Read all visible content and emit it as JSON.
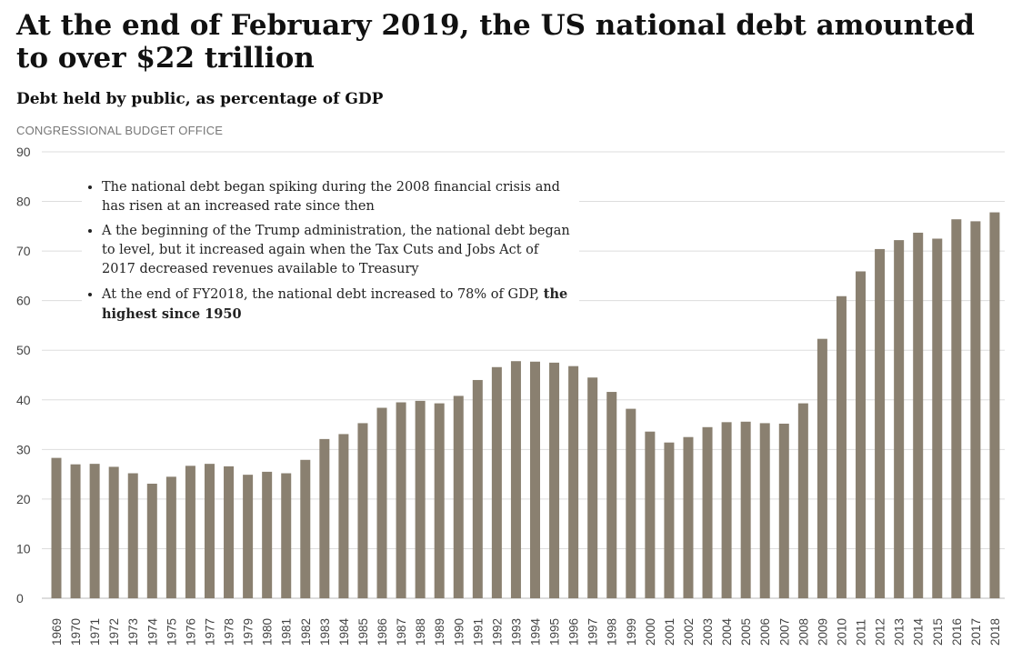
{
  "title": "At the end of February 2019, the US national debt amounted to over $22 trillion",
  "subtitle": "Debt held by public, as percentage of GDP",
  "source": "CONGRESSIONAL BUDGET OFFICE",
  "notes": {
    "item1": "The national debt began spiking during the 2008 financial crisis and has risen at an increased rate since then",
    "item2": "A the beginning of the Trump administration, the national debt began to level, but it increased again when the Tax Cuts and Jobs Act of 2017 decreased revenues available to Treasury",
    "item3_prefix": "At the end of FY2018, the national debt increased to 78% of GDP, ",
    "item3_bold": "the highest since 1950"
  },
  "colors": {
    "bar": "#8a8070",
    "grid": "#dddddd",
    "axis_text": "#444444"
  },
  "chart_data": {
    "type": "bar",
    "title": "Debt held by public, as percentage of GDP",
    "xlabel": "",
    "ylabel": "",
    "ylim": [
      0,
      90
    ],
    "yticks": [
      0,
      10,
      20,
      30,
      40,
      50,
      60,
      70,
      80,
      90
    ],
    "grid": true,
    "categories": [
      "1969",
      "1970",
      "1971",
      "1972",
      "1973",
      "1974",
      "1975",
      "1976",
      "1977",
      "1978",
      "1979",
      "1980",
      "1981",
      "1982",
      "1983",
      "1984",
      "1985",
      "1986",
      "1987",
      "1988",
      "1989",
      "1990",
      "1991",
      "1992",
      "1993",
      "1994",
      "1995",
      "1996",
      "1997",
      "1998",
      "1999",
      "2000",
      "2001",
      "2002",
      "2003",
      "2004",
      "2005",
      "2006",
      "2007",
      "2008",
      "2009",
      "2010",
      "2011",
      "2012",
      "2013",
      "2014",
      "2015",
      "2016",
      "2017",
      "2018"
    ],
    "values": [
      28.3,
      27.0,
      27.1,
      26.5,
      25.2,
      23.1,
      24.5,
      26.7,
      27.1,
      26.6,
      24.9,
      25.5,
      25.2,
      27.9,
      32.1,
      33.1,
      35.3,
      38.4,
      39.5,
      39.8,
      39.3,
      40.8,
      44.0,
      46.6,
      47.8,
      47.7,
      47.5,
      46.8,
      44.5,
      41.6,
      38.2,
      33.6,
      31.4,
      32.5,
      34.5,
      35.5,
      35.6,
      35.3,
      35.2,
      39.3,
      52.3,
      60.9,
      65.9,
      70.4,
      72.2,
      73.7,
      72.5,
      76.4,
      76.0,
      77.8
    ]
  }
}
